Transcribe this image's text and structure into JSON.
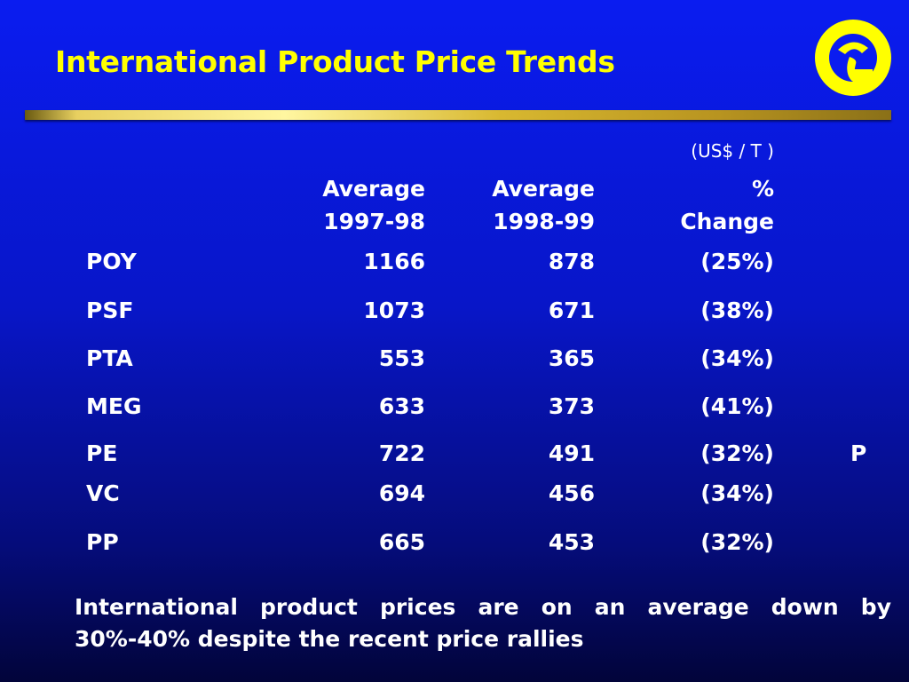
{
  "title": "International Product Price Trends",
  "colors": {
    "title": "#ffff00",
    "background": "#0a1cf0",
    "logo": "#ffff00"
  },
  "logo_icon": "reliance-logo-icon",
  "table": {
    "unit": "(US$ / T )",
    "headers": [
      {
        "line1": "Average",
        "line2": "1997-98"
      },
      {
        "line1": "Average",
        "line2": "1998-99"
      },
      {
        "line1": "%",
        "line2": "Change"
      }
    ],
    "rows": [
      {
        "product": "POY",
        "avg_1997_98": "1166",
        "avg_1998_99": "878",
        "change": "(25%)"
      },
      {
        "product": "PSF",
        "avg_1997_98": "1073",
        "avg_1998_99": "671",
        "change": "(38%)"
      },
      {
        "product": "PTA",
        "avg_1997_98": "553",
        "avg_1998_99": "365",
        "change": "(34%)"
      },
      {
        "product": "MEG",
        "avg_1997_98": "633",
        "avg_1998_99": "373",
        "change": "(41%)"
      },
      {
        "product": "PE",
        "avg_1997_98": "722",
        "avg_1998_99": "491",
        "change": "(32%)"
      },
      {
        "product": "VC",
        "avg_1997_98": "694",
        "avg_1998_99": "456",
        "change": "(34%)"
      },
      {
        "product": "PP",
        "avg_1997_98": "665",
        "avg_1998_99": "453",
        "change": "(32%)"
      }
    ],
    "stray_text": "P"
  },
  "footnote": "International product prices are on an average down by 30%-40% despite the recent price rallies"
}
